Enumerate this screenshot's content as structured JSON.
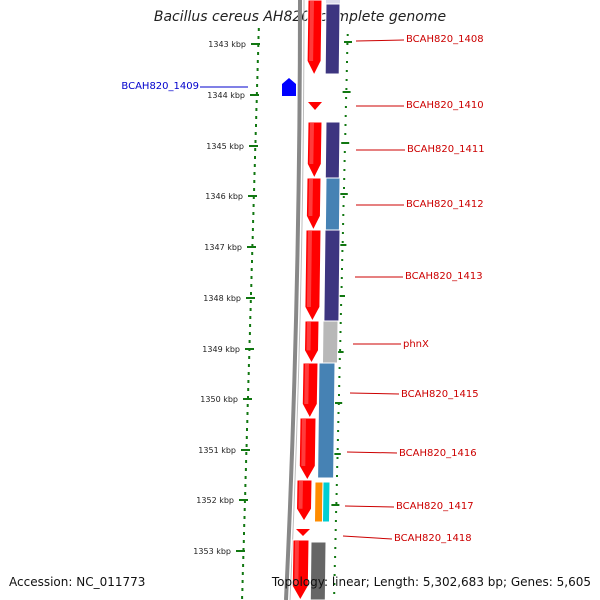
{
  "title": "Bacillus cereus AH820, complete genome",
  "footer": {
    "accession": "Accession: NC_011773",
    "summary": "Topology: linear; Length: 5,302,683 bp; Genes: 5,605"
  },
  "ruler": {
    "labels": [
      "1343 kbp",
      "1344 kbp",
      "1345 kbp",
      "1346 kbp",
      "1347 kbp",
      "1348 kbp",
      "1349 kbp",
      "1350 kbp",
      "1351 kbp",
      "1352 kbp",
      "1353 kbp"
    ]
  },
  "genes": [
    {
      "label": "BCAH820_1408",
      "color": "#cc0000",
      "side": "right"
    },
    {
      "label": "BCAH820_1409",
      "color": "#0000cc",
      "side": "left"
    },
    {
      "label": "BCAH820_1410",
      "color": "#cc0000",
      "side": "right"
    },
    {
      "label": "BCAH820_1411",
      "color": "#cc0000",
      "side": "right"
    },
    {
      "label": "BCAH820_1412",
      "color": "#cc0000",
      "side": "right"
    },
    {
      "label": "BCAH820_1413",
      "color": "#cc0000",
      "side": "right"
    },
    {
      "label": "phnX",
      "color": "#cc0000",
      "side": "right"
    },
    {
      "label": "BCAH820_1415",
      "color": "#cc0000",
      "side": "right"
    },
    {
      "label": "BCAH820_1416",
      "color": "#cc0000",
      "side": "right"
    },
    {
      "label": "BCAH820_1417",
      "color": "#cc0000",
      "side": "right"
    },
    {
      "label": "BCAH820_1418",
      "color": "#cc0000",
      "side": "right"
    }
  ],
  "colors": {
    "cds_forward": "#ff0000",
    "cds_reverse": "#0000ff",
    "backbone": "#888888",
    "tick": "#117711",
    "cog_purple": "#3d3580",
    "cog_steel": "#4682b4",
    "cog_gray": "#b8b8b8",
    "cog_orange": "#ff8c00",
    "cog_cyan": "#00ced1",
    "cog_dark": "#666666",
    "cog_light": "#dcdcec"
  }
}
